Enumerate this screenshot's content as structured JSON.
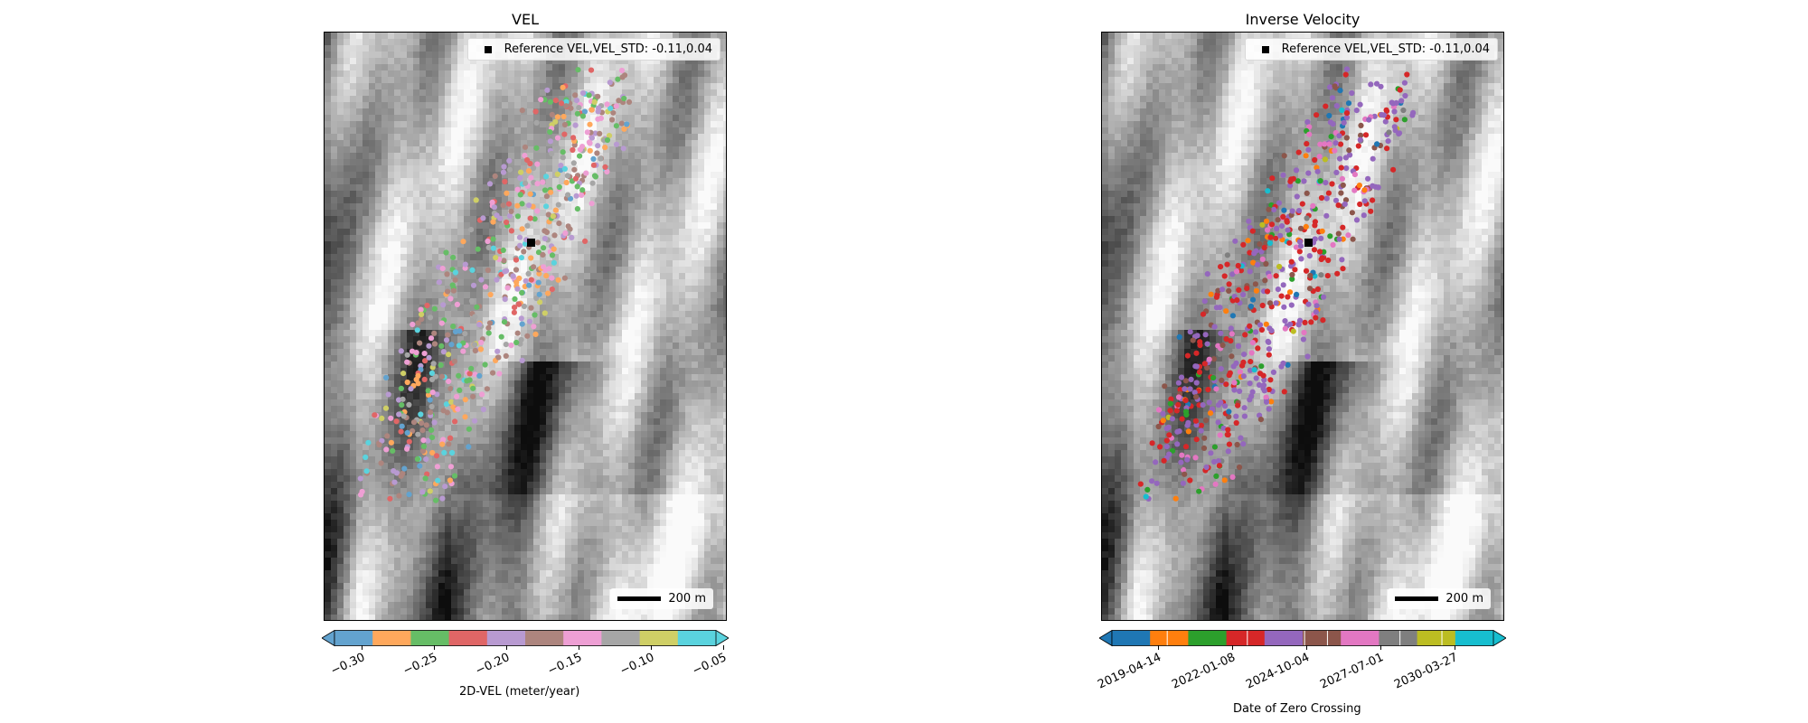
{
  "left": {
    "title": "VEL",
    "legend_text": "Reference VEL,VEL_STD: -0.11,0.04",
    "scale_text": "200 m",
    "colorbar_label": "2D-VEL (meter/year)",
    "tick_labels": [
      "−0.30",
      "−0.25",
      "−0.20",
      "−0.15",
      "−0.10",
      "−0.05"
    ],
    "colors": [
      "#63a3cf",
      "#ffa85c",
      "#66bd66",
      "#e06666",
      "#b89ad1",
      "#ad857e",
      "#ee9fd4",
      "#a6a6a6",
      "#cfcf66",
      "#5ad3de"
    ]
  },
  "right": {
    "title": "Inverse Velocity",
    "legend_text": "Reference VEL,VEL_STD: -0.11,0.04",
    "scale_text": "200 m",
    "colorbar_label": "Date of Zero Crossing",
    "tick_labels": [
      "2019-04-14",
      "2022-01-08",
      "2024-10-04",
      "2027-07-01",
      "2030-03-27"
    ],
    "colors": [
      "#1f77b4",
      "#ff7f0e",
      "#2ca02c",
      "#d62728",
      "#9467bd",
      "#8c564b",
      "#e377c2",
      "#7f7f7f",
      "#bcbd22",
      "#17becf"
    ]
  },
  "icons": {
    "reference": "black-square-marker",
    "scale": "scale-bar"
  }
}
